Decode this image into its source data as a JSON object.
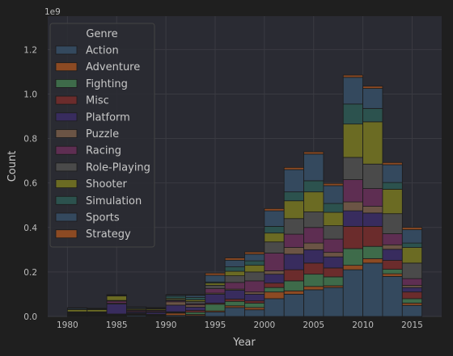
{
  "chart_data": {
    "type": "bar",
    "stacked": true,
    "title": "",
    "xlabel": "Year",
    "ylabel": "Count",
    "scale_label": "1e9",
    "xlim": [
      1978,
      2018
    ],
    "ylim": [
      0,
      1.35
    ],
    "xticks": [
      1980,
      1985,
      1990,
      1995,
      2000,
      2005,
      2010,
      2015
    ],
    "yticks": [
      0.0,
      0.2,
      0.4,
      0.6,
      0.8,
      1.0,
      1.2
    ],
    "ytick_labels": [
      "0.0",
      "0.2",
      "0.4",
      "0.6",
      "0.8",
      "1.0",
      "1.2"
    ],
    "grid": true,
    "legend_position": "top-left",
    "legend_title": "Genre",
    "bin_width": 2,
    "bins": [
      1980,
      1982,
      1984,
      1986,
      1988,
      1990,
      1992,
      1994,
      1996,
      1998,
      2000,
      2002,
      2004,
      2006,
      2008,
      2010,
      2012,
      2014
    ],
    "series": [
      {
        "name": "Action",
        "color": "#34495e",
        "values": [
          0.003,
          0.003,
          0.003,
          0.005,
          0.003,
          0.005,
          0.004,
          0.02,
          0.04,
          0.03,
          0.08,
          0.1,
          0.12,
          0.13,
          0.21,
          0.24,
          0.18,
          0.05
        ]
      },
      {
        "name": "Adventure",
        "color": "#8c4a23",
        "values": [
          0.002,
          0.002,
          0.002,
          0.003,
          0.002,
          0.01,
          0.005,
          0.005,
          0.008,
          0.01,
          0.03,
          0.015,
          0.015,
          0.008,
          0.02,
          0.02,
          0.012,
          0.01
        ]
      },
      {
        "name": "Fighting",
        "color": "#3e6b4a",
        "values": [
          0.003,
          0.003,
          0.003,
          0.003,
          0.002,
          0.003,
          0.01,
          0.03,
          0.02,
          0.02,
          0.02,
          0.045,
          0.055,
          0.04,
          0.075,
          0.055,
          0.02,
          0.02
        ]
      },
      {
        "name": "Misc",
        "color": "#6b2c2c",
        "values": [
          0.003,
          0.003,
          0.003,
          0.003,
          0.003,
          0.003,
          0.008,
          0.005,
          0.01,
          0.01,
          0.02,
          0.05,
          0.05,
          0.04,
          0.1,
          0.09,
          0.04,
          0.03
        ]
      },
      {
        "name": "Platform",
        "color": "#382c5e",
        "values": [
          0.003,
          0.003,
          0.045,
          0.005,
          0.008,
          0.03,
          0.015,
          0.04,
          0.04,
          0.03,
          0.04,
          0.07,
          0.06,
          0.05,
          0.07,
          0.06,
          0.05,
          0.02
        ]
      },
      {
        "name": "Puzzle",
        "color": "#6b5445",
        "values": [
          0.003,
          0.002,
          0.003,
          0.003,
          0.003,
          0.015,
          0.01,
          0.005,
          0.005,
          0.01,
          0.015,
          0.03,
          0.03,
          0.02,
          0.04,
          0.03,
          0.02,
          0.01
        ]
      },
      {
        "name": "Racing",
        "color": "#5e2e52",
        "values": [
          0.002,
          0.003,
          0.01,
          0.005,
          0.005,
          0.005,
          0.005,
          0.02,
          0.03,
          0.05,
          0.08,
          0.06,
          0.07,
          0.06,
          0.1,
          0.08,
          0.05,
          0.03
        ]
      },
      {
        "name": "Role-Playing",
        "color": "#4a4a4a",
        "values": [
          0.002,
          0.002,
          0.003,
          0.003,
          0.003,
          0.005,
          0.01,
          0.015,
          0.03,
          0.04,
          0.05,
          0.07,
          0.07,
          0.06,
          0.1,
          0.11,
          0.09,
          0.07
        ]
      },
      {
        "name": "Shooter",
        "color": "#6b6b23",
        "values": [
          0.01,
          0.01,
          0.02,
          0.005,
          0.005,
          0.005,
          0.008,
          0.01,
          0.02,
          0.03,
          0.04,
          0.08,
          0.09,
          0.06,
          0.15,
          0.19,
          0.11,
          0.07
        ]
      },
      {
        "name": "Simulation",
        "color": "#2c524e",
        "values": [
          0.002,
          0.002,
          0.002,
          0.002,
          0.002,
          0.01,
          0.01,
          0.005,
          0.02,
          0.02,
          0.03,
          0.04,
          0.05,
          0.04,
          0.09,
          0.06,
          0.03,
          0.02
        ]
      },
      {
        "name": "Sports",
        "color": "#34495e",
        "values": [
          0.005,
          0.003,
          0.003,
          0.005,
          0.003,
          0.005,
          0.01,
          0.03,
          0.03,
          0.03,
          0.07,
          0.1,
          0.12,
          0.08,
          0.12,
          0.09,
          0.08,
          0.06
        ]
      },
      {
        "name": "Strategy",
        "color": "#8c4a23",
        "values": [
          0.001,
          0.001,
          0.001,
          0.001,
          0.001,
          0.002,
          0.003,
          0.01,
          0.01,
          0.01,
          0.01,
          0.01,
          0.01,
          0.01,
          0.01,
          0.01,
          0.01,
          0.01
        ]
      }
    ]
  }
}
